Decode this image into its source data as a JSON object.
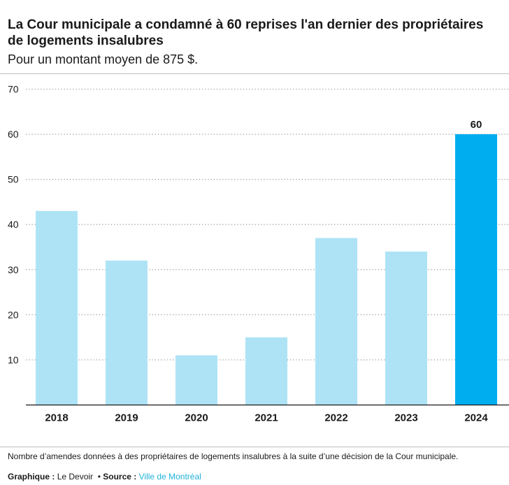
{
  "header": {
    "title": "La Cour municipale a condamné à 60 reprises l'an dernier des propriétaires de logements insalubres",
    "subtitle": "Pour un montant moyen de 875 $."
  },
  "footer": {
    "note": "Nombre d’amendes données à des propriétaires de logements insalubres à la suite d’une décision de la Cour municipale.",
    "graphic_label": "Graphique :",
    "graphic_value": "Le Devoir",
    "separator": "•",
    "source_label": "Source :",
    "source_value": "Ville de Montréal"
  },
  "colors": {
    "bar": "#aee3f6",
    "highlight_bar": "#00aeef",
    "source_link": "#1fb2d9"
  },
  "chart_data": {
    "type": "bar",
    "categories": [
      "2018",
      "2019",
      "2020",
      "2021",
      "2022",
      "2023",
      "2024"
    ],
    "values": [
      43,
      32,
      11,
      15,
      37,
      34,
      60
    ],
    "highlight_index": 6,
    "data_labels": [
      {
        "index": 6,
        "text": "60"
      }
    ],
    "yticks": [
      10,
      20,
      30,
      40,
      50,
      60,
      70
    ],
    "ylim": [
      0,
      70
    ],
    "grid": true,
    "title": "La Cour municipale a condamné à 60 reprises l'an dernier des propriétaires de logements insalubres",
    "subtitle": "Pour un montant moyen de 875 $.",
    "xlabel": "",
    "ylabel": ""
  }
}
